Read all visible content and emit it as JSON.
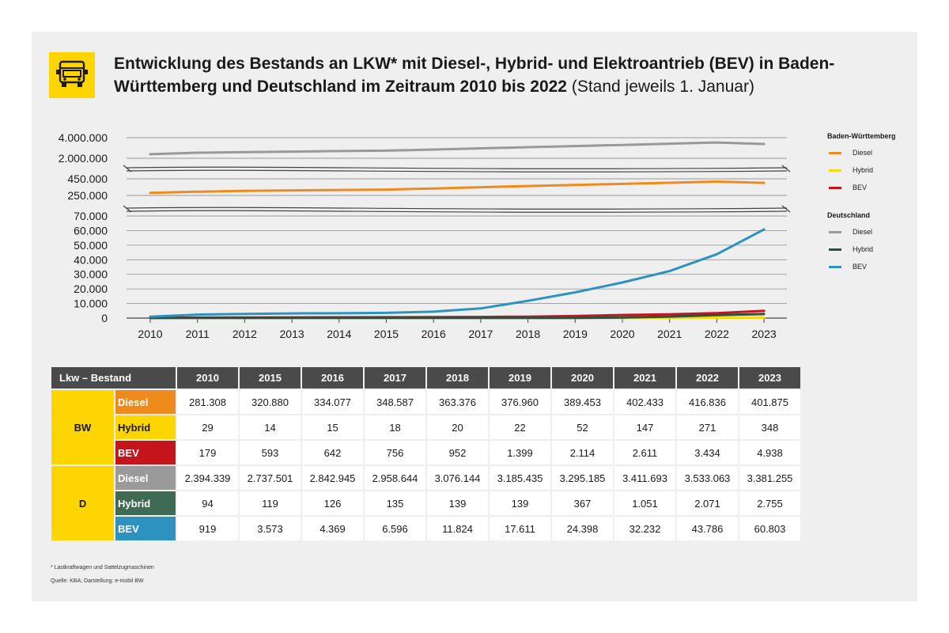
{
  "title": {
    "main": "Entwicklung des Bestands an LKW* mit Diesel-, Hybrid- und Elektroantrieb (BEV) in Baden-Württemberg und Deutschland im Zeitraum 2010 bis 2022",
    "sub": "(Stand jeweils 1. Januar)"
  },
  "logo_icon": "truck-icon",
  "chart_data": {
    "type": "line",
    "title": "Entwicklung des Bestands an LKW* mit Diesel-, Hybrid- und Elektroantrieb (BEV) in Baden-Württemberg und Deutschland im Zeitraum 2010 bis 2022",
    "x": [
      "2010",
      "2011",
      "2012",
      "2013",
      "2014",
      "2015",
      "2016",
      "2017",
      "2018",
      "2019",
      "2020",
      "2021",
      "2022",
      "2023"
    ],
    "axis": {
      "broken": true,
      "segments": [
        {
          "range": [
            2000000,
            4000000
          ],
          "ticks": [
            "4.000.000",
            "2.000.000"
          ]
        },
        {
          "range": [
            250000,
            450000
          ],
          "ticks": [
            "450.000",
            "250.000"
          ]
        },
        {
          "range": [
            0,
            70000
          ],
          "ticks": [
            "70.000",
            "60.000",
            "50.000",
            "40.000",
            "30.000",
            "20.000",
            "10.000",
            "0"
          ]
        }
      ]
    },
    "legend_position": "right",
    "legend_groups": [
      {
        "label": "Baden-Württemberg",
        "items": [
          {
            "label": "Diesel",
            "color": "#ef8a1d"
          },
          {
            "label": "Hybrid",
            "color": "#f2dc10"
          },
          {
            "label": "BEV",
            "color": "#c4141c"
          }
        ]
      },
      {
        "label": "Deutschland",
        "items": [
          {
            "label": "Diesel",
            "color": "#999999"
          },
          {
            "label": "Hybrid",
            "color": "#2f4f3f"
          },
          {
            "label": "BEV",
            "color": "#2e92c0"
          }
        ]
      }
    ],
    "series": [
      {
        "group": "BW",
        "name": "Diesel",
        "segment": 1,
        "color": "#ef8a1d",
        "values": [
          281308,
          295000,
          305000,
          311000,
          316000,
          320880,
          334077,
          348587,
          363376,
          376960,
          389453,
          402433,
          416836,
          401875
        ]
      },
      {
        "group": "BW",
        "name": "Hybrid",
        "segment": 2,
        "color": "#f2dc10",
        "values": [
          29,
          25,
          20,
          18,
          16,
          14,
          15,
          18,
          20,
          22,
          52,
          147,
          271,
          348
        ]
      },
      {
        "group": "BW",
        "name": "BEV",
        "segment": 2,
        "color": "#c4141c",
        "values": [
          179,
          300,
          400,
          480,
          540,
          593,
          642,
          756,
          952,
          1399,
          2114,
          2611,
          3434,
          4938
        ]
      },
      {
        "group": "D",
        "name": "Diesel",
        "segment": 0,
        "color": "#999999",
        "values": [
          2394339,
          2540000,
          2600000,
          2650000,
          2700000,
          2737501,
          2842945,
          2958644,
          3076144,
          3185435,
          3295185,
          3411693,
          3533063,
          3381255
        ]
      },
      {
        "group": "D",
        "name": "Hybrid",
        "segment": 2,
        "color": "#2f4f3f",
        "values": [
          94,
          100,
          105,
          110,
          115,
          119,
          126,
          135,
          139,
          139,
          367,
          1051,
          2071,
          2755
        ]
      },
      {
        "group": "D",
        "name": "BEV",
        "segment": 2,
        "color": "#2e92c0",
        "values": [
          919,
          2400,
          2900,
          3200,
          3300,
          3573,
          4369,
          6596,
          11824,
          17611,
          24398,
          32232,
          43786,
          60803
        ]
      }
    ]
  },
  "table": {
    "corner": "Lkw – Bestand",
    "years": [
      "2010",
      "2015",
      "2016",
      "2017",
      "2018",
      "2019",
      "2020",
      "2021",
      "2022",
      "2023"
    ],
    "groups": [
      {
        "label": "BW",
        "rows": [
          {
            "label": "Diesel",
            "bg": "#ef8a1d",
            "fg": "#ffffff",
            "values": [
              "281.308",
              "320.880",
              "334.077",
              "348.587",
              "363.376",
              "376.960",
              "389.453",
              "402.433",
              "416.836",
              "401.875"
            ]
          },
          {
            "label": "Hybrid",
            "bg": "#ffd500",
            "fg": "#1a1a1a",
            "values": [
              "29",
              "14",
              "15",
              "18",
              "20",
              "22",
              "52",
              "147",
              "271",
              "348"
            ]
          },
          {
            "label": "BEV",
            "bg": "#c4141c",
            "fg": "#ffffff",
            "values": [
              "179",
              "593",
              "642",
              "756",
              "952",
              "1.399",
              "2.114",
              "2.611",
              "3.434",
              "4.938"
            ]
          }
        ]
      },
      {
        "label": "D",
        "rows": [
          {
            "label": "Diesel",
            "bg": "#9a9a9a",
            "fg": "#ffffff",
            "values": [
              "2.394.339",
              "2.737.501",
              "2.842.945",
              "2.958.644",
              "3.076.144",
              "3.185.435",
              "3.295.185",
              "3.411.693",
              "3.533.063",
              "3.381.255"
            ]
          },
          {
            "label": "Hybrid",
            "bg": "#3f6b55",
            "fg": "#ffffff",
            "values": [
              "94",
              "119",
              "126",
              "135",
              "139",
              "139",
              "367",
              "1.051",
              "2.071",
              "2.755"
            ]
          },
          {
            "label": "BEV",
            "bg": "#2e92c0",
            "fg": "#ffffff",
            "values": [
              "919",
              "3.573",
              "4.369",
              "6.596",
              "11.824",
              "17.611",
              "24.398",
              "32.232",
              "43.786",
              "60.803"
            ]
          }
        ]
      }
    ]
  },
  "footnotes": {
    "note": "* Lastkraftwagen und Sattelzugmaschinen",
    "source": "Quelle: KBA; Darstellung: e-mobil BW"
  }
}
